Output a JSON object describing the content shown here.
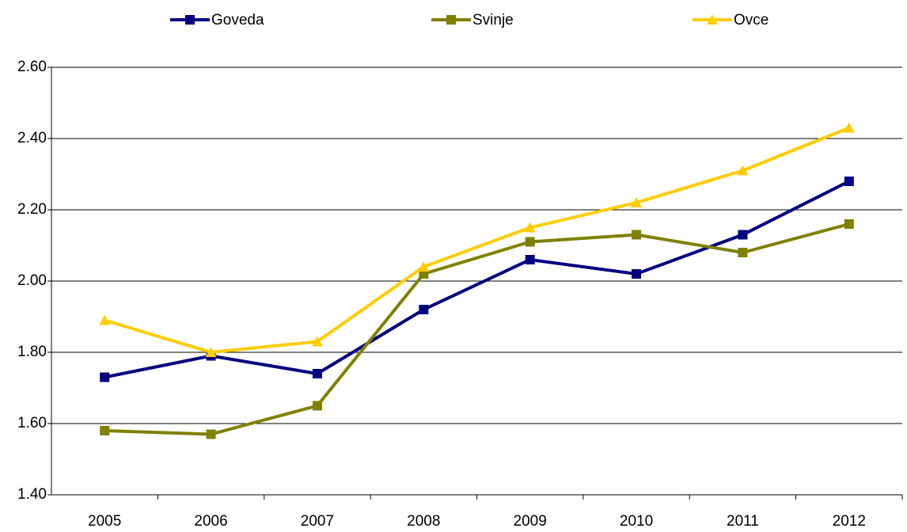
{
  "chart_data": {
    "type": "line",
    "categories": [
      "2005",
      "2006",
      "2007",
      "2008",
      "2009",
      "2010",
      "2011",
      "2012"
    ],
    "series": [
      {
        "name": "Goveda",
        "color": "#000080",
        "marker": "square",
        "values": [
          1.73,
          1.79,
          1.74,
          1.92,
          2.06,
          2.02,
          2.13,
          2.28
        ]
      },
      {
        "name": "Svinje",
        "color": "#808000",
        "marker": "square",
        "values": [
          1.58,
          1.57,
          1.65,
          2.02,
          2.11,
          2.13,
          2.08,
          2.16
        ]
      },
      {
        "name": "Ovce",
        "color": "#ffcc00",
        "marker": "triangle",
        "values": [
          1.89,
          1.8,
          1.83,
          2.04,
          2.15,
          2.22,
          2.31,
          2.43
        ]
      }
    ],
    "ylim": [
      1.4,
      2.6
    ],
    "yticks": [
      {
        "value": 1.4,
        "label": "1.40"
      },
      {
        "value": 1.6,
        "label": "1.60"
      },
      {
        "value": 1.8,
        "label": "1.80"
      },
      {
        "value": 2.0,
        "label": "2.00"
      },
      {
        "value": 2.2,
        "label": "2.20"
      },
      {
        "value": 2.4,
        "label": "2.40"
      },
      {
        "value": 2.6,
        "label": "2.60"
      }
    ],
    "grid": true,
    "legend": "top"
  }
}
